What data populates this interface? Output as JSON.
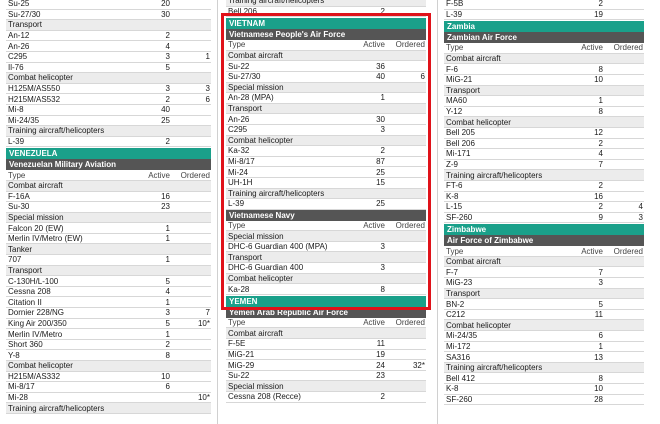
{
  "col1": {
    "top_rows": [
      {
        "name": "Su-25",
        "active": "20",
        "ordered": ""
      },
      {
        "name": "Su-27/30",
        "active": "30",
        "ordered": ""
      }
    ],
    "transport_label": "Transport",
    "transport_rows": [
      {
        "name": "An-12",
        "active": "2",
        "ordered": ""
      },
      {
        "name": "An-26",
        "active": "4",
        "ordered": ""
      },
      {
        "name": "C295",
        "active": "3",
        "ordered": "1"
      },
      {
        "name": "Il-76",
        "active": "5",
        "ordered": ""
      }
    ],
    "combat_heli_label": "Combat helicopter",
    "combat_heli_rows": [
      {
        "name": "H125M/AS550",
        "active": "3",
        "ordered": "3"
      },
      {
        "name": "H215M/AS532",
        "active": "2",
        "ordered": "6"
      },
      {
        "name": "Mi-8",
        "active": "40",
        "ordered": ""
      },
      {
        "name": "Mi-24/35",
        "active": "25",
        "ordered": ""
      }
    ],
    "training_label": "Training aircraft/helicopters",
    "training_rows": [
      {
        "name": "L-39",
        "active": "2",
        "ordered": ""
      }
    ],
    "country": "VENEZUELA",
    "force": "Venezuelan Military Aviation",
    "header": {
      "type": "Type",
      "active": "Active",
      "ordered": "Ordered"
    },
    "v_combat_label": "Combat aircraft",
    "v_combat_rows": [
      {
        "name": "F-16A",
        "active": "16",
        "ordered": ""
      },
      {
        "name": "Su-30",
        "active": "23",
        "ordered": ""
      }
    ],
    "v_special_label": "Special mission",
    "v_special_rows": [
      {
        "name": "Falcon 20 (EW)",
        "active": "1",
        "ordered": ""
      },
      {
        "name": "Merlin IV/Metro (EW)",
        "active": "1",
        "ordered": ""
      }
    ],
    "v_tanker_label": "Tanker",
    "v_tanker_rows": [
      {
        "name": "707",
        "active": "1",
        "ordered": ""
      }
    ],
    "v_transport_label": "Transport",
    "v_transport_rows": [
      {
        "name": "C-130H/L-100",
        "active": "5",
        "ordered": ""
      },
      {
        "name": "Cessna 208",
        "active": "4",
        "ordered": ""
      },
      {
        "name": "Citation II",
        "active": "1",
        "ordered": ""
      },
      {
        "name": "Dornier 228/NG",
        "active": "3",
        "ordered": "7"
      },
      {
        "name": "King Air 200/350",
        "active": "5",
        "ordered": "10*"
      },
      {
        "name": "Merlin IV/Metro",
        "active": "1",
        "ordered": ""
      },
      {
        "name": "Short 360",
        "active": "2",
        "ordered": ""
      },
      {
        "name": "Y-8",
        "active": "8",
        "ordered": ""
      }
    ],
    "v_heli_label": "Combat helicopter",
    "v_heli_rows": [
      {
        "name": "H215M/AS332",
        "active": "10",
        "ordered": ""
      },
      {
        "name": "Mi-8/17",
        "active": "6",
        "ordered": ""
      },
      {
        "name": "Mi-28",
        "active": "",
        "ordered": "10*"
      }
    ],
    "v_training_label": "Training aircraft/helicopters"
  },
  "col2": {
    "top_label": "Training aircraft/helicopters",
    "top_row": {
      "name": "Bell 206",
      "active": "2",
      "ordered": ""
    },
    "country": "VIETNAM",
    "force": "Vietnamese People's Air Force",
    "header": {
      "type": "Type",
      "active": "Active",
      "ordered": "Ordered"
    },
    "combat_label": "Combat aircraft",
    "combat_rows": [
      {
        "name": "Su-22",
        "active": "36",
        "ordered": ""
      },
      {
        "name": "Su-27/30",
        "active": "40",
        "ordered": "6"
      }
    ],
    "special_label": "Special mission",
    "special_rows": [
      {
        "name": "An-28 (MPA)",
        "active": "1",
        "ordered": ""
      }
    ],
    "transport_label": "Transport",
    "transport_rows": [
      {
        "name": "An-26",
        "active": "30",
        "ordered": ""
      },
      {
        "name": "C295",
        "active": "3",
        "ordered": ""
      }
    ],
    "heli_label": "Combat helicopter",
    "heli_rows": [
      {
        "name": "Ka-32",
        "active": "2",
        "ordered": ""
      },
      {
        "name": "Mi-8/17",
        "active": "87",
        "ordered": ""
      },
      {
        "name": "Mi-24",
        "active": "25",
        "ordered": ""
      },
      {
        "name": "UH-1H",
        "active": "15",
        "ordered": ""
      }
    ],
    "training_label": "Training aircraft/helicopters",
    "training_rows": [
      {
        "name": "L-39",
        "active": "25",
        "ordered": ""
      }
    ],
    "navy": "Vietnamese Navy",
    "navy_header": {
      "type": "Type",
      "active": "Active",
      "ordered": "Ordered"
    },
    "navy_special_label": "Special mission",
    "navy_special_rows": [
      {
        "name": "DHC-6 Guardian 400 (MPA)",
        "active": "3",
        "ordered": ""
      }
    ],
    "navy_transport_label": "Transport",
    "navy_transport_rows": [
      {
        "name": "DHC-6 Guardian 400",
        "active": "3",
        "ordered": ""
      }
    ],
    "navy_heli_label": "Combat helicopter",
    "navy_heli_rows": [
      {
        "name": "Ka-28",
        "active": "8",
        "ordered": ""
      }
    ],
    "country2": "YEMEN",
    "force2": "Yemen Arab Republic Air Force",
    "header2": {
      "type": "Type",
      "active": "Active",
      "ordered": "Ordered"
    },
    "y_combat_label": "Combat aircraft",
    "y_combat_rows": [
      {
        "name": "F-5E",
        "active": "11",
        "ordered": ""
      },
      {
        "name": "MiG-21",
        "active": "19",
        "ordered": ""
      },
      {
        "name": "MiG-29",
        "active": "24",
        "ordered": "32*"
      },
      {
        "name": "Su-22",
        "active": "23",
        "ordered": ""
      }
    ],
    "y_special_label": "Special mission",
    "y_special_rows": [
      {
        "name": "Cessna 208 (Recce)",
        "active": "2",
        "ordered": ""
      }
    ]
  },
  "col3": {
    "top_rows": [
      {
        "name": "F-5B",
        "active": "2",
        "ordered": ""
      },
      {
        "name": "L-39",
        "active": "19",
        "ordered": ""
      }
    ],
    "country": "Zambia",
    "force": "Zambian Air Force",
    "header": {
      "type": "Type",
      "active": "Active",
      "ordered": "Ordered"
    },
    "combat_label": "Combat aircraft",
    "combat_rows": [
      {
        "name": "F-6",
        "active": "8",
        "ordered": ""
      },
      {
        "name": "MiG-21",
        "active": "10",
        "ordered": ""
      }
    ],
    "transport_label": "Transport",
    "transport_rows": [
      {
        "name": "MA60",
        "active": "1",
        "ordered": ""
      },
      {
        "name": "Y-12",
        "active": "8",
        "ordered": ""
      }
    ],
    "heli_label": "Combat helicopter",
    "heli_rows": [
      {
        "name": "Bell 205",
        "active": "12",
        "ordered": ""
      },
      {
        "name": "Bell 206",
        "active": "2",
        "ordered": ""
      },
      {
        "name": "Mi-171",
        "active": "4",
        "ordered": ""
      },
      {
        "name": "Z-9",
        "active": "7",
        "ordered": ""
      }
    ],
    "training_label": "Training aircraft/helicopters",
    "training_rows": [
      {
        "name": "FT-6",
        "active": "2",
        "ordered": ""
      },
      {
        "name": "K-8",
        "active": "16",
        "ordered": ""
      },
      {
        "name": "L-15",
        "active": "2",
        "ordered": "4"
      },
      {
        "name": "SF-260",
        "active": "9",
        "ordered": "3"
      }
    ],
    "country2": "Zimbabwe",
    "force2": "Air Force of Zimbabwe",
    "header2": {
      "type": "Type",
      "active": "Active",
      "ordered": "Ordered"
    },
    "z_combat_label": "Combat aircraft",
    "z_combat_rows": [
      {
        "name": "F-7",
        "active": "7",
        "ordered": ""
      },
      {
        "name": "MiG-23",
        "active": "3",
        "ordered": ""
      }
    ],
    "z_transport_label": "Transport",
    "z_transport_rows": [
      {
        "name": "BN-2",
        "active": "5",
        "ordered": ""
      },
      {
        "name": "C212",
        "active": "11",
        "ordered": ""
      }
    ],
    "z_heli_label": "Combat helicopter",
    "z_heli_rows": [
      {
        "name": "Mi-24/35",
        "active": "6",
        "ordered": ""
      },
      {
        "name": "Mi-172",
        "active": "1",
        "ordered": ""
      },
      {
        "name": "SA316",
        "active": "13",
        "ordered": ""
      }
    ],
    "z_training_label": "Training aircraft/helicopters",
    "z_training_rows": [
      {
        "name": "Bell 412",
        "active": "8",
        "ordered": ""
      },
      {
        "name": "K-8",
        "active": "10",
        "ordered": ""
      },
      {
        "name": "SF-260",
        "active": "28",
        "ordered": ""
      }
    ]
  }
}
